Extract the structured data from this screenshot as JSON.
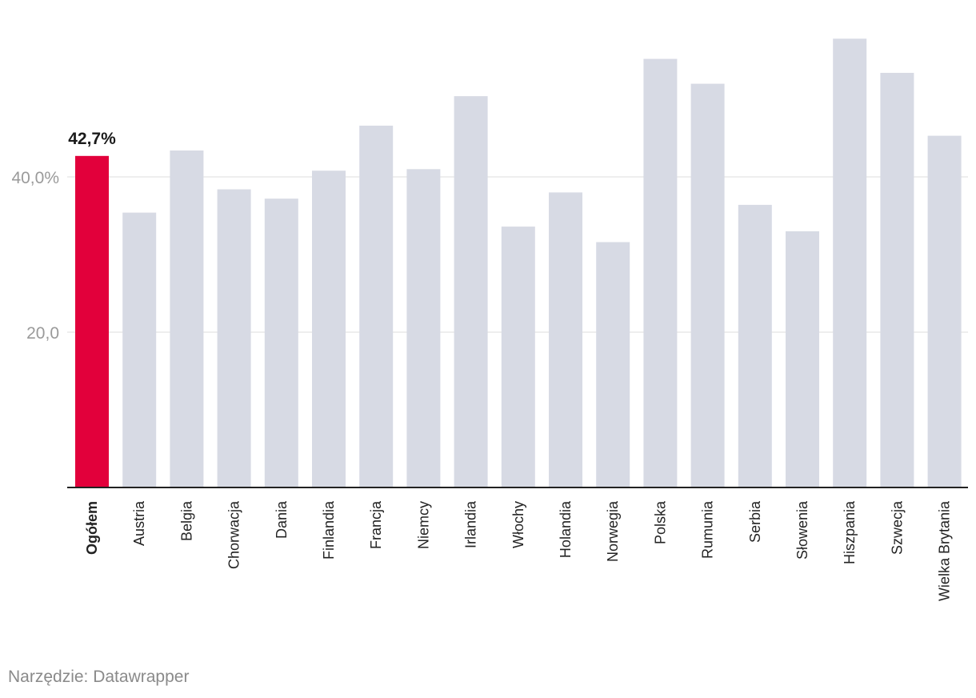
{
  "chart_data": {
    "type": "bar",
    "categories": [
      "Ogółem",
      "Austria",
      "Belgia",
      "Chorwacja",
      "Dania",
      "Finlandia",
      "Francja",
      "Niemcy",
      "Irlandia",
      "Włochy",
      "Holandia",
      "Norwegia",
      "Polska",
      "Rumunia",
      "Serbia",
      "Słowenia",
      "Hiszpania",
      "Szwecja",
      "Wielka Brytania"
    ],
    "values": [
      42.7,
      35.4,
      43.4,
      38.4,
      37.2,
      40.8,
      46.6,
      41.0,
      50.4,
      33.6,
      38.0,
      31.6,
      55.2,
      52.0,
      36.4,
      33.0,
      57.8,
      53.4,
      45.3
    ],
    "highlight_index": 0,
    "highlight_label": "42,7%",
    "y_ticks": [
      {
        "value": 20,
        "label": "20,0"
      },
      {
        "value": 40,
        "label": "40,0%"
      }
    ],
    "ylim": [
      0,
      60
    ],
    "grid": true,
    "colors": {
      "bar": "#d7dae4",
      "highlight": "#e2003b",
      "grid": "#dddddd",
      "baseline": "#222222",
      "tick_label": "#9a9a9a",
      "category_label": "#222222",
      "value_label": "#1a1a1a"
    }
  },
  "source": "Narzędzie: Datawrapper"
}
